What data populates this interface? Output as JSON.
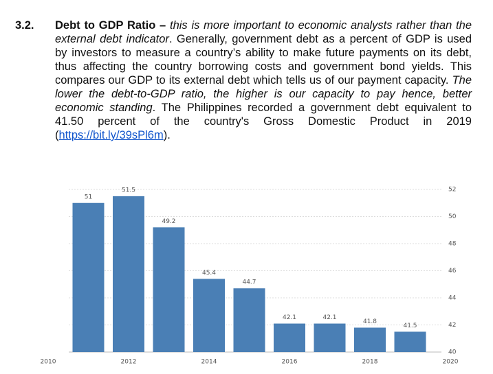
{
  "section_number": "3.2.",
  "paragraph": [
    {
      "text": "Debt to GDP Ratio – ",
      "style": "bold"
    },
    {
      "text": "this is more important to economic analysts rather than the external debt indicator",
      "style": "italic"
    },
    {
      "text": ". Generally, government debt as a percent of GDP is used by investors to measure a country’s ability to make future payments on its debt, thus affecting the country borrowing costs and government bond yields. This compares our GDP to its external debt which tells us of our payment capacity. ",
      "style": "normal"
    },
    {
      "text": "The lower the debt-to-GDP ratio, the higher is our capacity to pay hence, better economic standing",
      "style": "italic"
    },
    {
      "text": ". The Philippines recorded a government debt equivalent to 41.50 percent of the country's Gross Domestic Product in 2019  (",
      "style": "normal"
    },
    {
      "text": "https://bit.ly/39sPl6m",
      "style": "link"
    },
    {
      "text": ").",
      "style": "normal"
    }
  ],
  "chart_data": {
    "type": "bar",
    "x": [
      2011,
      2012,
      2013,
      2014,
      2015,
      2016,
      2017,
      2018,
      2019
    ],
    "values": [
      51,
      51.5,
      49.2,
      45.4,
      44.7,
      42.1,
      42.1,
      41.8,
      41.5
    ],
    "color": "#4a7fb5",
    "xlim": [
      2010,
      2020
    ],
    "xticks": [
      2010,
      2012,
      2014,
      2016,
      2018,
      2020
    ],
    "ylim": [
      40,
      52
    ],
    "yticks": [
      40,
      42,
      44,
      46,
      48,
      50,
      52
    ],
    "grid": true
  }
}
